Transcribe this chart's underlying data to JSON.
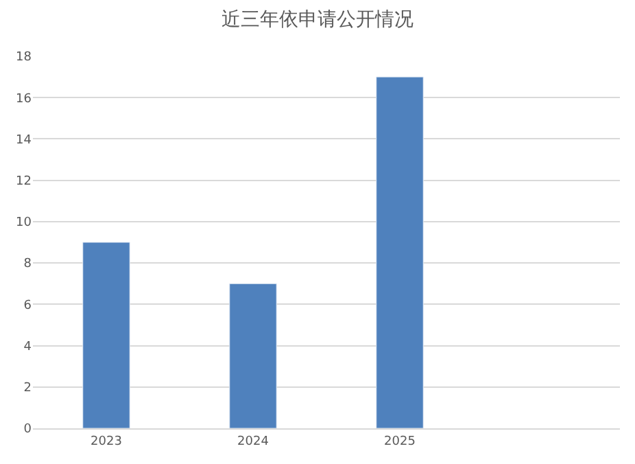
{
  "chart_data": {
    "type": "bar",
    "title": "近三年依申请公开情况",
    "categories": [
      "2023",
      "2024",
      "2025",
      null
    ],
    "values": [
      9,
      7,
      17,
      null
    ],
    "color": "#4f81bd",
    "ylim": [
      0,
      18
    ],
    "yticks": [
      0,
      2,
      4,
      6,
      8,
      10,
      12,
      14,
      16,
      18
    ],
    "grid": "y"
  }
}
